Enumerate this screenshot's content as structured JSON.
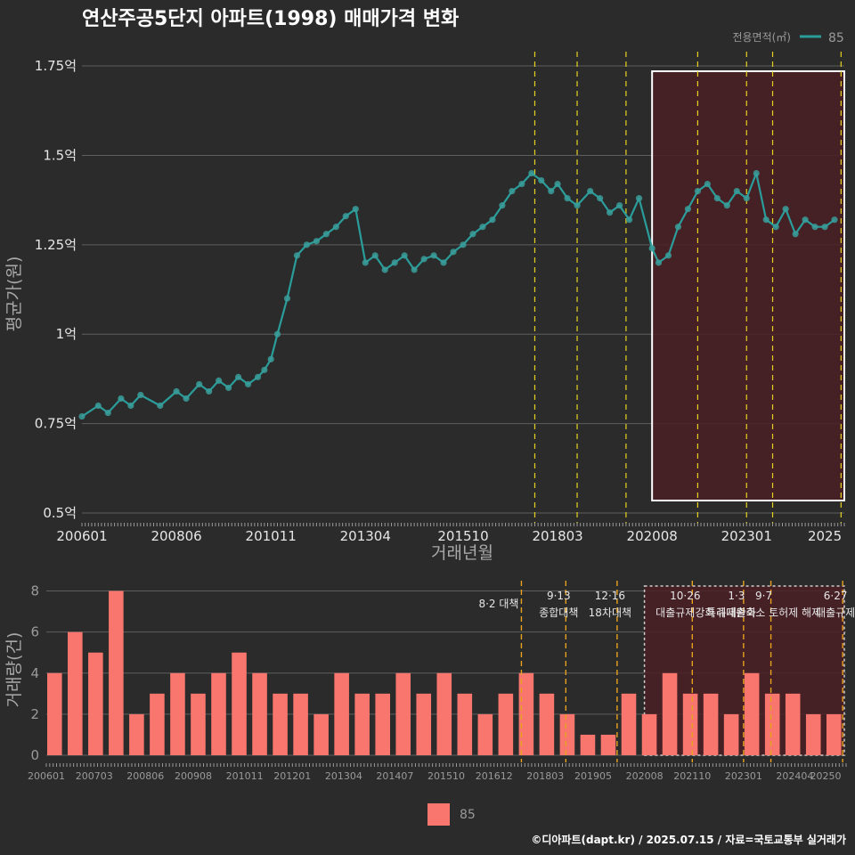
{
  "title": "연산주공5단지 아파트(1998) 매매가격 변화",
  "legend_top": {
    "label": "전용면적(㎡)",
    "item": "85"
  },
  "legend_bottom": {
    "item": "85"
  },
  "credit": "©디아파트(dapt.kr) / 2025.07.15 / 자료=국토교통부 실거래가",
  "colors": {
    "background": "#2b2b2b",
    "price_line": "#2a9d9a",
    "price_point": "#3a9e9a",
    "volume_bar": "#f8766d",
    "highlight_fill": "#4a1f25",
    "policy_line": "#e6d21e",
    "grid": "#5e5e5e"
  },
  "chart_data": [
    {
      "type": "line",
      "title": "연산주공5단지 아파트(1998) 매매가격 변화",
      "xlabel": "거래년월",
      "ylabel": "평균가(원)",
      "x_ticks": [
        "200601",
        "200806",
        "201011",
        "201304",
        "201510",
        "201803",
        "202008",
        "202301",
        "2025"
      ],
      "y_ticks": [
        "0.5억",
        "0.75억",
        "1억",
        "1.25억",
        "1.5억",
        "1.75억"
      ],
      "y_tick_values": [
        0.5,
        0.75,
        1.0,
        1.25,
        1.5,
        1.75
      ],
      "ylim": [
        0.48,
        1.79
      ],
      "xlim": [
        "2006-01",
        "2025-07"
      ],
      "series": [
        {
          "name": "85",
          "x": [
            "2006-01",
            "2006-06",
            "2006-09",
            "2007-01",
            "2007-04",
            "2007-07",
            "2008-01",
            "2008-06",
            "2008-09",
            "2009-01",
            "2009-04",
            "2009-07",
            "2009-10",
            "2010-01",
            "2010-04",
            "2010-07",
            "2010-09",
            "2010-11",
            "2011-01",
            "2011-04",
            "2011-07",
            "2011-10",
            "2012-01",
            "2012-04",
            "2012-07",
            "2012-10",
            "2013-01",
            "2013-04",
            "2013-07",
            "2013-10",
            "2014-01",
            "2014-04",
            "2014-07",
            "2014-10",
            "2015-01",
            "2015-04",
            "2015-07",
            "2015-10",
            "2016-01",
            "2016-04",
            "2016-07",
            "2016-10",
            "2017-01",
            "2017-04",
            "2017-07",
            "2017-10",
            "2018-01",
            "2018-03",
            "2018-06",
            "2018-09",
            "2019-01",
            "2019-04",
            "2019-07",
            "2019-10",
            "2020-01",
            "2020-04",
            "2020-08",
            "2020-10",
            "2021-01",
            "2021-04",
            "2021-07",
            "2021-10",
            "2022-01",
            "2022-04",
            "2022-07",
            "2022-10",
            "2023-01",
            "2023-04",
            "2023-07",
            "2023-10",
            "2024-01",
            "2024-04",
            "2024-07",
            "2024-10",
            "2025-01",
            "2025-04"
          ],
          "y": [
            0.77,
            0.8,
            0.78,
            0.82,
            0.8,
            0.83,
            0.8,
            0.84,
            0.82,
            0.86,
            0.84,
            0.87,
            0.85,
            0.88,
            0.86,
            0.88,
            0.9,
            0.93,
            1.0,
            1.1,
            1.22,
            1.25,
            1.26,
            1.28,
            1.3,
            1.33,
            1.35,
            1.2,
            1.22,
            1.18,
            1.2,
            1.22,
            1.18,
            1.21,
            1.22,
            1.2,
            1.23,
            1.25,
            1.28,
            1.3,
            1.32,
            1.36,
            1.4,
            1.42,
            1.45,
            1.43,
            1.4,
            1.42,
            1.38,
            1.36,
            1.4,
            1.38,
            1.34,
            1.36,
            1.32,
            1.38,
            1.24,
            1.2,
            1.22,
            1.3,
            1.35,
            1.4,
            1.42,
            1.38,
            1.36,
            1.4,
            1.38,
            1.45,
            1.32,
            1.3,
            1.35,
            1.28,
            1.32,
            1.3,
            1.3,
            1.32
          ]
        }
      ]
    },
    {
      "type": "bar",
      "ylabel": "거래량(건)",
      "x_ticks": [
        "200601",
        "200703",
        "200806",
        "200908",
        "201011",
        "201201",
        "201304",
        "201407",
        "201510",
        "201612",
        "201803",
        "201905",
        "202008",
        "202110",
        "202301",
        "202404",
        "20250"
      ],
      "y_ticks": [
        "0",
        "2",
        "4",
        "6",
        "8"
      ],
      "ylim": [
        0,
        8.5
      ],
      "series": [
        {
          "name": "85",
          "x": [
            "2006-01",
            "2006-07",
            "2007-01",
            "2007-07",
            "2008-01",
            "2008-07",
            "2009-01",
            "2009-07",
            "2010-01",
            "2010-07",
            "2011-01",
            "2011-07",
            "2012-01",
            "2012-07",
            "2013-01",
            "2013-07",
            "2014-01",
            "2014-07",
            "2015-01",
            "2015-07",
            "2016-01",
            "2016-07",
            "2017-01",
            "2017-07",
            "2018-01",
            "2018-07",
            "2019-01",
            "2019-07",
            "2020-01",
            "2020-07",
            "2021-01",
            "2021-07",
            "2022-01",
            "2022-07",
            "2023-01",
            "2023-07",
            "2024-01",
            "2024-07",
            "2025-01"
          ],
          "values": [
            4,
            6,
            5,
            8,
            2,
            3,
            4,
            3,
            4,
            5,
            4,
            3,
            3,
            2,
            4,
            3,
            3,
            4,
            3,
            4,
            3,
            2,
            3,
            4,
            3,
            2,
            1,
            1,
            3,
            2,
            4,
            3,
            3,
            2,
            4,
            3,
            3,
            2,
            2
          ]
        }
      ]
    }
  ],
  "policies": [
    {
      "date": "2017-08",
      "label_a": "8·2 대책",
      "label_b": ""
    },
    {
      "date": "2018-09",
      "label_a": "9·13",
      "label_b": "종합대책"
    },
    {
      "date": "2019-12",
      "label_a": "12·16",
      "label_b": "18차대책"
    },
    {
      "date": "2021-10",
      "label_a": "10·26",
      "label_b": "대출규제강화"
    },
    {
      "date": "2023-01",
      "label_a": "1·3",
      "label_b": "규제완화"
    },
    {
      "date": "2023-09",
      "label_a": "9·7",
      "label_b": "특례대출축소 토허제 해제"
    },
    {
      "date": "2025-06",
      "label_a": "6·27",
      "label_b": "대출규제"
    }
  ],
  "highlight": {
    "from": "2020-08",
    "to": "2025-07"
  }
}
